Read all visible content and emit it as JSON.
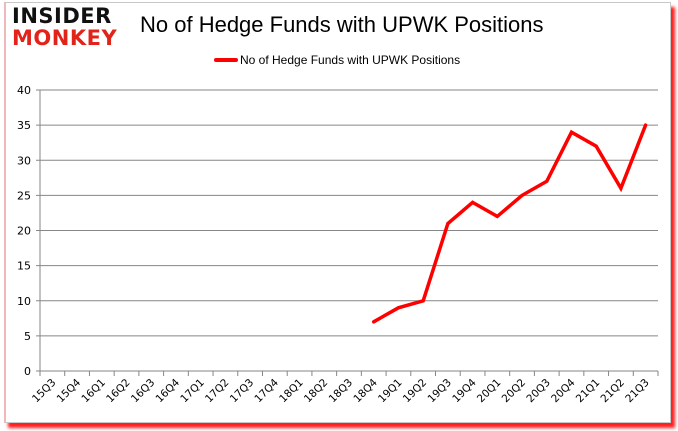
{
  "logo": {
    "line1": "INSIDER",
    "line2": "MONKEY"
  },
  "colors": {
    "series": "#ff0000",
    "grid": "#868686",
    "logo_red": "#e2231a",
    "shadow": "#ff2020"
  },
  "chart_data": {
    "type": "line",
    "title": "No of Hedge Funds with UPWK Positions",
    "xlabel": "",
    "ylabel": "",
    "ylim": [
      0,
      40
    ],
    "yticks": [
      0,
      5,
      10,
      15,
      20,
      25,
      30,
      35,
      40
    ],
    "grid": true,
    "legend_position": "top",
    "categories": [
      "15Q3",
      "15Q4",
      "16Q1",
      "16Q2",
      "16Q3",
      "16Q4",
      "17Q1",
      "17Q2",
      "17Q3",
      "17Q4",
      "18Q1",
      "18Q2",
      "18Q3",
      "18Q4",
      "19Q1",
      "19Q2",
      "19Q3",
      "19Q4",
      "20Q1",
      "20Q2",
      "20Q3",
      "20Q4",
      "21Q1",
      "21Q2",
      "21Q3"
    ],
    "series": [
      {
        "name": "No of Hedge Funds with UPWK Positions",
        "values": [
          null,
          null,
          null,
          null,
          null,
          null,
          null,
          null,
          null,
          null,
          null,
          null,
          null,
          7,
          9,
          10,
          21,
          24,
          22,
          25,
          27,
          34,
          32,
          26,
          35
        ]
      }
    ]
  }
}
